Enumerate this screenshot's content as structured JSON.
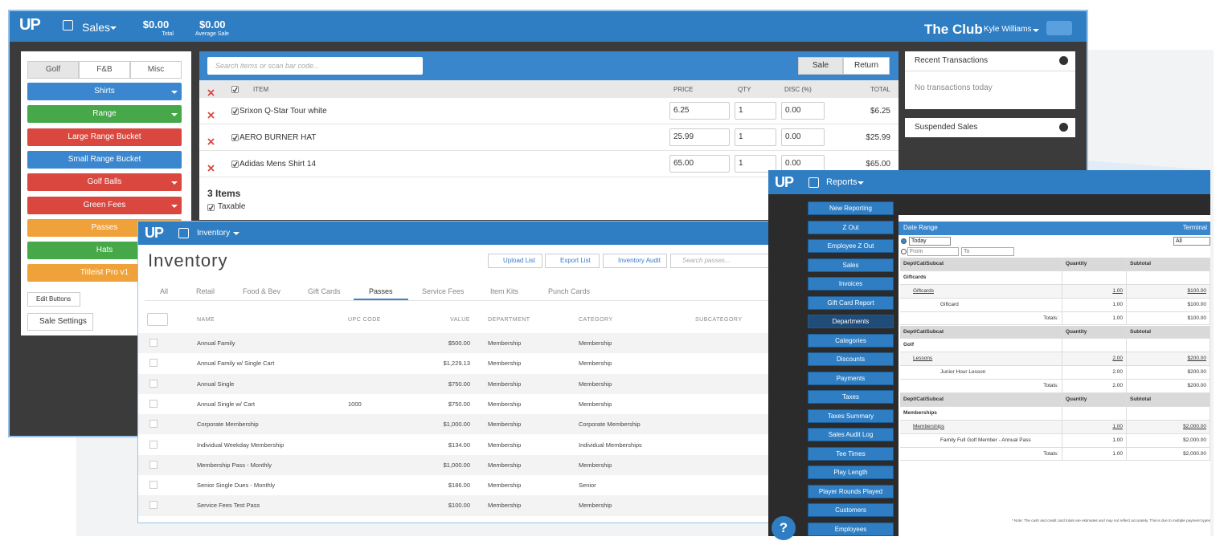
{
  "sales": {
    "header": {
      "logo": "UP",
      "module": "Sales",
      "total": "$0.00",
      "total_label": "Total",
      "average": "$0.00",
      "average_label": "Average Sale",
      "club": "The Club",
      "user": "Kyle Williams"
    },
    "tabs": [
      "Golf",
      "F&B",
      "Misc"
    ],
    "active_tab": 0,
    "buttons": [
      {
        "label": "Shirts",
        "color": "#3a87d0",
        "dropdown": true
      },
      {
        "label": "Range",
        "color": "#46a849",
        "dropdown": true
      },
      {
        "label": "Large Range Bucket",
        "color": "#d9473f",
        "dropdown": false
      },
      {
        "label": "Small Range Bucket",
        "color": "#3a87d0",
        "dropdown": false
      },
      {
        "label": "Golf Balls",
        "color": "#d9473f",
        "dropdown": true
      },
      {
        "label": "Green Fees",
        "color": "#d9473f",
        "dropdown": true
      },
      {
        "label": "Passes",
        "color": "#f0a23a",
        "dropdown": false
      },
      {
        "label": "Hats",
        "color": "#46a849",
        "dropdown": false
      },
      {
        "label": "Titleist Pro v1",
        "color": "#f0a23a",
        "dropdown": false
      }
    ],
    "edit_buttons": "Edit Buttons",
    "sale_settings": "Sale Settings",
    "search_placeholder": "Search items or scan bar code...",
    "sale": "Sale",
    "return": "Return",
    "columns": {
      "item": "ITEM",
      "price": "PRICE",
      "qty": "QTY",
      "disc": "DISC (%)",
      "total": "TOTAL"
    },
    "items": [
      {
        "name": "Srixon Q-Star Tour white",
        "price": "6.25",
        "qty": "1",
        "disc": "0.00",
        "total": "$6.25"
      },
      {
        "name": "AERO BURNER HAT",
        "price": "25.99",
        "qty": "1",
        "disc": "0.00",
        "total": "$25.99"
      },
      {
        "name": "Adidas Mens Shirt 14",
        "price": "65.00",
        "qty": "1",
        "disc": "0.00",
        "total": "$65.00"
      }
    ],
    "count": "3 Items",
    "taxable": "Taxable",
    "recent": "Recent Transactions",
    "no_transactions": "No transactions today",
    "suspended": "Suspended Sales"
  },
  "inventory": {
    "logo": "UP",
    "module": "Inventory",
    "title": "Inventory",
    "actions": [
      "Upload List",
      "Export List",
      "Inventory Audit"
    ],
    "search_placeholder": "Search passes...",
    "tabs": [
      "All",
      "Retail",
      "Food & Bev",
      "Gift Cards",
      "Passes",
      "Service Fees",
      "Item Kits",
      "Punch Cards"
    ],
    "active_tab": 4,
    "columns": {
      "name": "NAME",
      "upc": "UPC CODE",
      "value": "VALUE",
      "department": "DEPARTMENT",
      "category": "CATEGORY",
      "subcategory": "SUBCATEGORY"
    },
    "rows": [
      {
        "name": "Annual Family",
        "value": "$500.00",
        "department": "Membership",
        "category": "Membership"
      },
      {
        "name": "Annual Family w/ Single Cart",
        "value": "$1,229.13",
        "department": "Membership",
        "category": "Membership"
      },
      {
        "name": "Annual Single",
        "value": "$750.00",
        "department": "Membership",
        "category": "Membership"
      },
      {
        "name": "Annual Single w/ Cart",
        "upc": "1000",
        "value": "$750.00",
        "department": "Membership",
        "category": "Membership"
      },
      {
        "name": "Corporate Membership",
        "value": "$1,000.00",
        "department": "Membership",
        "category": "Corporate Membership"
      },
      {
        "name": "Individual Weekday Membership",
        "value": "$134.00",
        "department": "Membership",
        "category": "Individual Memberships"
      },
      {
        "name": "Membership Pass - Monthly",
        "value": "$1,000.00",
        "department": "Membership",
        "category": "Membership"
      },
      {
        "name": "Senior Single Dues - Monthly",
        "value": "$186.00",
        "department": "Membership",
        "category": "Senior"
      },
      {
        "name": "Service Fees Test Pass",
        "value": "$100.00",
        "department": "Membership",
        "category": "Membership"
      }
    ]
  },
  "reports": {
    "logo": "UP",
    "module": "Reports",
    "menu": [
      "New Reporting",
      "Z Out",
      "Employee Z Out",
      "Sales",
      "Invoices",
      "Gift Card Report",
      "Departments",
      "Categories",
      "Discounts",
      "Payments",
      "Taxes",
      "Taxes Summary",
      "Sales Audit Log",
      "Tee Times",
      "Play Length",
      "Player Rounds Played",
      "Customers",
      "Employees"
    ],
    "active_menu": 6,
    "date_range": "Date Range",
    "terminal": "Terminal",
    "period": "Today",
    "from": "From",
    "to": "To",
    "terminal_value": "All",
    "table_header": [
      "Dept/Cat/Subcat",
      "Quantity",
      "Subtotal"
    ],
    "totals_label": "Totals:",
    "sections": [
      {
        "group": "Giftcards",
        "sub": {
          "name": "Giftcards",
          "quantity": "1.00",
          "subtotal": "$100.00"
        },
        "item": {
          "name": "Giftcard",
          "quantity": "1.00",
          "subtotal": "$100.00"
        },
        "totals": {
          "quantity": "1.00",
          "subtotal": "$100.00"
        }
      },
      {
        "group": "Golf",
        "sub": {
          "name": "Lessons",
          "quantity": "2.00",
          "subtotal": "$200.00"
        },
        "item": {
          "name": "Junior Hour Lesson",
          "quantity": "2.00",
          "subtotal": "$200.00"
        },
        "totals": {
          "quantity": "2.00",
          "subtotal": "$200.00"
        }
      },
      {
        "group": "Memberships",
        "sub": {
          "name": "Memberships",
          "quantity": "1.00",
          "subtotal": "$2,000.00"
        },
        "item": {
          "name": "Family Full Golf Member - Annual Pass",
          "quantity": "1.00",
          "subtotal": "$2,000.00"
        },
        "totals": {
          "quantity": "1.00",
          "subtotal": "$2,000.00"
        }
      }
    ],
    "note": "* Note: The cash and credit card totals are estimates and may not reflect accurately. This is due to multiple payment types",
    "help": "?"
  }
}
